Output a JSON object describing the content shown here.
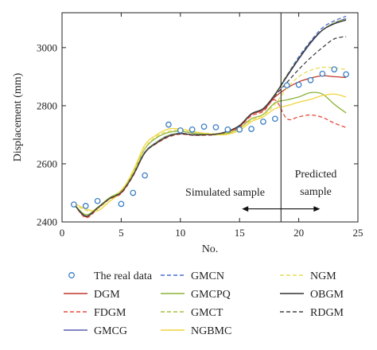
{
  "chart_data": {
    "type": "line",
    "title": "",
    "xlabel": "No.",
    "ylabel": "Displacement (mm)",
    "xlim": [
      0,
      25
    ],
    "ylim": [
      2400,
      3120
    ],
    "xticks": [
      0,
      5,
      10,
      15,
      20,
      25
    ],
    "yticks": [
      2400,
      2600,
      2800,
      3000
    ],
    "grid": false,
    "legend_position": "bottom",
    "annotations": {
      "divider_x": 18.5,
      "simulated_label": "Simulated sample",
      "predicted_label_line1": "Predicted",
      "predicted_label_line2": "sample",
      "arrow_from_x": 15.2,
      "arrow_to_x": 21.8,
      "arrow_y": 2445
    },
    "x": [
      1,
      2,
      3,
      4,
      5,
      6,
      7,
      8,
      9,
      10,
      11,
      12,
      13,
      14,
      15,
      16,
      17,
      18,
      19,
      20,
      21,
      22,
      23,
      24
    ],
    "scatter": {
      "name": "The real data",
      "color": "#3b7fc4",
      "x": [
        1,
        2,
        3,
        5,
        6,
        7,
        9,
        10,
        11,
        12,
        13,
        14,
        15,
        16,
        17,
        18,
        19,
        20,
        21,
        22,
        23,
        24
      ],
      "values": [
        2460,
        2455,
        2472,
        2462,
        2500,
        2560,
        2735,
        2715,
        2718,
        2728,
        2726,
        2718,
        2718,
        2720,
        2745,
        2755,
        2870,
        2872,
        2888,
        2910,
        2925,
        2908
      ]
    },
    "series": [
      {
        "name": "DGM",
        "color": "#c0392b",
        "dash": "solid",
        "values": [
          2462,
          2418,
          2448,
          2480,
          2500,
          2560,
          2640,
          2672,
          2695,
          2705,
          2700,
          2700,
          2702,
          2710,
          2728,
          2770,
          2785,
          2830,
          2860,
          2882,
          2895,
          2903,
          2900,
          2897
        ]
      },
      {
        "name": "FDGM",
        "color": "#e74c3c",
        "dash": "dashed",
        "values": [
          2462,
          2415,
          2445,
          2478,
          2498,
          2558,
          2638,
          2670,
          2692,
          2702,
          2698,
          2698,
          2700,
          2708,
          2726,
          2765,
          2780,
          2820,
          2755,
          2762,
          2768,
          2760,
          2740,
          2725
        ]
      },
      {
        "name": "GMCG",
        "color": "#5b5fb0",
        "dash": "solid",
        "values": [
          2462,
          2420,
          2448,
          2482,
          2505,
          2563,
          2640,
          2675,
          2698,
          2705,
          2700,
          2700,
          2702,
          2712,
          2732,
          2772,
          2790,
          2840,
          2900,
          2960,
          3015,
          3060,
          3085,
          3100
        ]
      },
      {
        "name": "GMCN",
        "color": "#4a6fd1",
        "dash": "dashed",
        "values": [
          2462,
          2420,
          2448,
          2482,
          2505,
          2563,
          2640,
          2675,
          2698,
          2705,
          2700,
          2700,
          2702,
          2712,
          2732,
          2772,
          2790,
          2840,
          2905,
          2968,
          3022,
          3068,
          3092,
          3108
        ]
      },
      {
        "name": "GMCPQ",
        "color": "#8db33a",
        "dash": "solid",
        "values": [
          2462,
          2425,
          2450,
          2483,
          2508,
          2568,
          2652,
          2690,
          2708,
          2712,
          2706,
          2702,
          2700,
          2705,
          2722,
          2755,
          2770,
          2810,
          2820,
          2830,
          2845,
          2840,
          2805,
          2775
        ]
      },
      {
        "name": "GMCT",
        "color": "#a4c43a",
        "dash": "dashed",
        "values": [
          2462,
          2420,
          2448,
          2482,
          2505,
          2563,
          2640,
          2675,
          2698,
          2705,
          2700,
          2700,
          2702,
          2712,
          2732,
          2772,
          2790,
          2840,
          2905,
          2962,
          3018,
          3060,
          3085,
          3098
        ]
      },
      {
        "name": "NGBMC",
        "color": "#f2d43a",
        "dash": "solid",
        "values": [
          2465,
          2445,
          2438,
          2470,
          2505,
          2575,
          2665,
          2700,
          2720,
          2720,
          2712,
          2705,
          2700,
          2702,
          2715,
          2745,
          2762,
          2790,
          2800,
          2812,
          2822,
          2835,
          2840,
          2830
        ]
      },
      {
        "name": "NGM",
        "color": "#e6dd55",
        "dash": "dashed",
        "values": [
          2465,
          2440,
          2445,
          2478,
          2510,
          2570,
          2655,
          2695,
          2712,
          2716,
          2710,
          2706,
          2704,
          2708,
          2722,
          2750,
          2768,
          2805,
          2860,
          2900,
          2922,
          2932,
          2930,
          2925
        ]
      },
      {
        "name": "OBGM",
        "color": "#333333",
        "dash": "solid",
        "values": [
          2462,
          2420,
          2448,
          2480,
          2502,
          2560,
          2638,
          2672,
          2695,
          2704,
          2700,
          2700,
          2702,
          2712,
          2732,
          2772,
          2790,
          2838,
          2902,
          2962,
          3018,
          3060,
          3082,
          3095
        ]
      },
      {
        "name": "RDGM",
        "color": "#444444",
        "dash": "dashed",
        "values": [
          2462,
          2420,
          2448,
          2480,
          2502,
          2560,
          2638,
          2672,
          2695,
          2704,
          2700,
          2700,
          2702,
          2712,
          2732,
          2772,
          2790,
          2835,
          2880,
          2925,
          2965,
          3000,
          3030,
          3038
        ]
      }
    ]
  }
}
